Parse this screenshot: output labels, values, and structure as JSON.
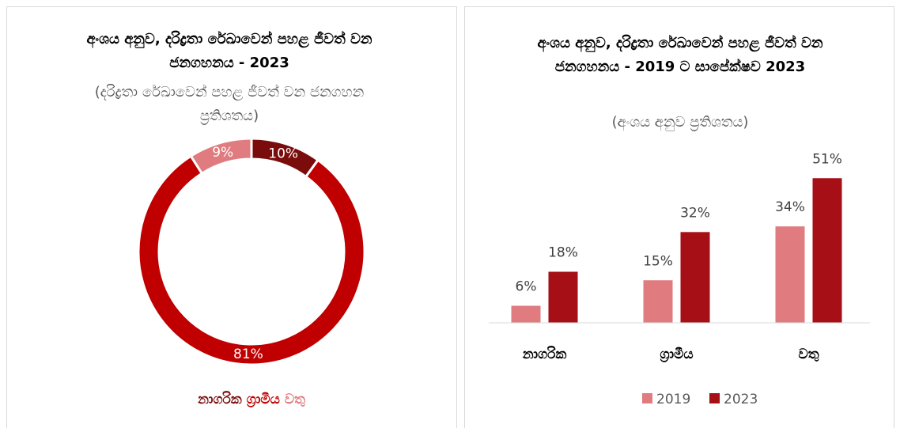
{
  "chart_data": [
    {
      "type": "donut",
      "title": "අංශය අනුව, දරිද්‍රතා රේඛාවෙන් පහළ ජීවත් වන ජනගහනය - 2023",
      "subtitle": "(දරිද්‍රතා රේඛාවෙන් පහළ ජීවත් වන ජනගහන ප්‍රතිශතය)",
      "categories": [
        "නාගරික",
        "ග්‍රාමීය",
        "වතු"
      ],
      "values": [
        10,
        81,
        9
      ],
      "value_labels": [
        "10%",
        "81%",
        "9%"
      ],
      "colors": [
        "#7b0c0c",
        "#c00000",
        "#e07b7f"
      ],
      "legend": "bottom"
    },
    {
      "type": "bar",
      "title": "අංශය අනුව, දරිද්‍රතා රේඛාවෙන් පහළ ජීවත් වන ජනගහනය - 2019 ට සාපේක්ෂව 2023",
      "subtitle": "(අංශය අනුව ප්‍රතිශතය)",
      "categories": [
        "නාගරික",
        "ග්‍රාමීය",
        "වතු"
      ],
      "series": [
        {
          "name": "2019",
          "color": "#e07b7f",
          "values": [
            6,
            15,
            34
          ],
          "value_labels": [
            "6%",
            "15%",
            "34%"
          ]
        },
        {
          "name": "2023",
          "color": "#a50f15",
          "values": [
            18,
            32,
            51
          ],
          "value_labels": [
            "18%",
            "32%",
            "51%"
          ]
        }
      ],
      "ylim": [
        0,
        60
      ],
      "legend": "bottom"
    }
  ]
}
